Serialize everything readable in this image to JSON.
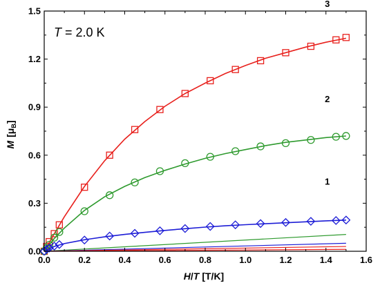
{
  "chart_data": {
    "type": "scatter",
    "xlabel_main": "H",
    "xlabel_slash": "/",
    "xlabel_sub": "T",
    "xlabel_unit": "[T/K]",
    "ylabel_main": "M",
    "ylabel_unit_open": "[μ",
    "ylabel_unit_sub": "B",
    "ylabel_unit_close": "]",
    "annotation_var": "T",
    "annotation_value": " = 2.0 K",
    "xlim": [
      0.0,
      1.6
    ],
    "ylim": [
      0.0,
      1.5
    ],
    "x_ticks": [
      "0.0",
      "0.2",
      "0.4",
      "0.6",
      "0.8",
      "1.0",
      "1.2",
      "1.4",
      "1.6"
    ],
    "y_ticks": [
      "0.0",
      "0.3",
      "0.6",
      "0.9",
      "1.2",
      "1.5"
    ],
    "grid": false,
    "series": [
      {
        "name": "3",
        "marker": "square",
        "color": "#e8201c",
        "x": [
          0.0,
          0.012,
          0.025,
          0.05,
          0.075,
          0.2,
          0.325,
          0.45,
          0.575,
          0.7,
          0.825,
          0.95,
          1.075,
          1.2,
          1.325,
          1.45,
          1.5
        ],
        "y": [
          0.0,
          0.03,
          0.06,
          0.11,
          0.165,
          0.4,
          0.6,
          0.76,
          0.885,
          0.985,
          1.065,
          1.135,
          1.19,
          1.24,
          1.28,
          1.32,
          1.335
        ],
        "fit": [
          [
            0.0,
            0.0
          ],
          [
            0.05,
            0.11
          ],
          [
            0.1,
            0.215
          ],
          [
            0.2,
            0.405
          ],
          [
            0.3,
            0.565
          ],
          [
            0.4,
            0.7
          ],
          [
            0.5,
            0.81
          ],
          [
            0.6,
            0.905
          ],
          [
            0.7,
            0.985
          ],
          [
            0.8,
            1.05
          ],
          [
            0.9,
            1.11
          ],
          [
            1.0,
            1.16
          ],
          [
            1.1,
            1.205
          ],
          [
            1.2,
            1.24
          ],
          [
            1.3,
            1.275
          ],
          [
            1.4,
            1.305
          ],
          [
            1.5,
            1.33
          ]
        ]
      },
      {
        "name": "2",
        "marker": "circle",
        "color": "#2e9a2e",
        "x": [
          0.0,
          0.012,
          0.025,
          0.05,
          0.075,
          0.2,
          0.325,
          0.45,
          0.575,
          0.7,
          0.825,
          0.95,
          1.075,
          1.2,
          1.325,
          1.45,
          1.5
        ],
        "y": [
          0.0,
          0.02,
          0.04,
          0.085,
          0.12,
          0.25,
          0.35,
          0.43,
          0.5,
          0.55,
          0.59,
          0.625,
          0.655,
          0.675,
          0.695,
          0.715,
          0.72
        ],
        "fit": [
          [
            0.0,
            0.0
          ],
          [
            0.05,
            0.08
          ],
          [
            0.1,
            0.145
          ],
          [
            0.2,
            0.255
          ],
          [
            0.3,
            0.34
          ],
          [
            0.4,
            0.405
          ],
          [
            0.5,
            0.46
          ],
          [
            0.6,
            0.505
          ],
          [
            0.7,
            0.545
          ],
          [
            0.8,
            0.58
          ],
          [
            0.9,
            0.61
          ],
          [
            1.0,
            0.635
          ],
          [
            1.1,
            0.66
          ],
          [
            1.2,
            0.68
          ],
          [
            1.3,
            0.695
          ],
          [
            1.4,
            0.71
          ],
          [
            1.5,
            0.72
          ]
        ]
      },
      {
        "name": "1",
        "marker": "diamond",
        "color": "#1c1cd6",
        "x": [
          0.0,
          0.012,
          0.025,
          0.05,
          0.075,
          0.2,
          0.325,
          0.45,
          0.575,
          0.7,
          0.825,
          0.95,
          1.075,
          1.2,
          1.325,
          1.45,
          1.5
        ],
        "y": [
          0.0,
          0.012,
          0.02,
          0.032,
          0.042,
          0.07,
          0.095,
          0.112,
          0.128,
          0.142,
          0.155,
          0.165,
          0.173,
          0.18,
          0.187,
          0.192,
          0.195
        ],
        "fit": [
          [
            0.0,
            0.0
          ],
          [
            0.05,
            0.03
          ],
          [
            0.1,
            0.048
          ],
          [
            0.2,
            0.072
          ],
          [
            0.3,
            0.09
          ],
          [
            0.4,
            0.105
          ],
          [
            0.5,
            0.118
          ],
          [
            0.6,
            0.13
          ],
          [
            0.7,
            0.141
          ],
          [
            0.8,
            0.151
          ],
          [
            0.9,
            0.159
          ],
          [
            1.0,
            0.166
          ],
          [
            1.1,
            0.172
          ],
          [
            1.2,
            0.178
          ],
          [
            1.3,
            0.184
          ],
          [
            1.4,
            0.19
          ],
          [
            1.5,
            0.195
          ]
        ]
      }
    ],
    "reference_lines": [
      {
        "color": "#2e9a2e",
        "x": [
          0.0,
          1.5
        ],
        "y": [
          0.0,
          0.105
        ]
      },
      {
        "color": "#1c1cd6",
        "x": [
          0.0,
          1.5
        ],
        "y": [
          0.0,
          0.05
        ]
      },
      {
        "color": "#e8201c",
        "x": [
          0.0,
          1.5
        ],
        "y": [
          0.0,
          0.03
        ]
      },
      {
        "color": "#e8201c",
        "x": [
          0.0,
          1.5
        ],
        "y": [
          0.0,
          0.012
        ]
      }
    ]
  }
}
